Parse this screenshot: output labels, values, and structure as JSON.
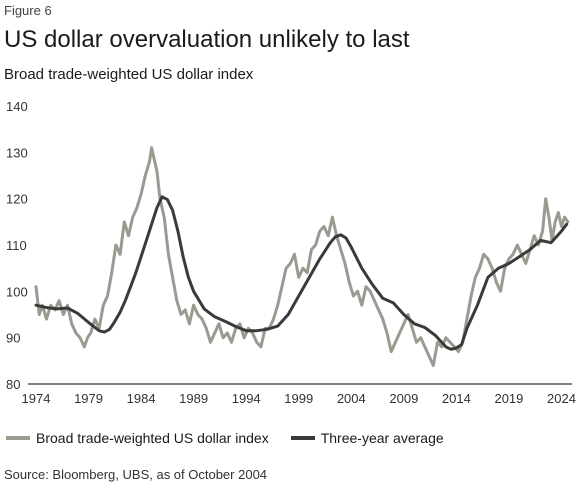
{
  "figure_label": "Figure 6",
  "title": "US dollar overvaluation unlikely to last",
  "subtitle": "Broad trade-weighted US dollar index",
  "source": "Source: Bloomberg, UBS, as of October 2004",
  "colors": {
    "index": "#9a9a90",
    "average": "#3a3a3a",
    "axis": "#333333"
  },
  "chart_data": {
    "type": "line",
    "title": "US dollar overvaluation unlikely to last",
    "subtitle": "Broad trade-weighted US dollar index",
    "xlabel": "",
    "ylabel": "",
    "xlim": [
      1974,
      2025
    ],
    "ylim": [
      80,
      140
    ],
    "x_ticks": [
      1974,
      1979,
      1984,
      1989,
      1994,
      1999,
      2004,
      2009,
      2014,
      2019,
      2024
    ],
    "y_ticks": [
      80,
      90,
      100,
      110,
      120,
      130,
      140
    ],
    "grid": false,
    "legend_position": "bottom",
    "series": [
      {
        "name": "Broad trade-weighted US dollar index",
        "color": "#9a9a90",
        "x": [
          1974.0,
          1974.3,
          1974.6,
          1975.0,
          1975.4,
          1975.8,
          1976.2,
          1976.6,
          1977.0,
          1977.4,
          1977.8,
          1978.2,
          1978.6,
          1978.9,
          1979.2,
          1979.6,
          1980.0,
          1980.4,
          1980.8,
          1981.2,
          1981.6,
          1982.0,
          1982.4,
          1982.8,
          1983.2,
          1983.6,
          1984.0,
          1984.4,
          1984.8,
          1985.0,
          1985.2,
          1985.5,
          1985.8,
          1986.2,
          1986.6,
          1987.0,
          1987.4,
          1987.8,
          1988.2,
          1988.6,
          1989.0,
          1989.4,
          1989.8,
          1990.2,
          1990.6,
          1991.0,
          1991.4,
          1991.8,
          1992.2,
          1992.6,
          1993.0,
          1993.4,
          1993.8,
          1994.2,
          1994.6,
          1995.0,
          1995.4,
          1995.8,
          1996.2,
          1996.6,
          1997.0,
          1997.4,
          1997.8,
          1998.2,
          1998.6,
          1999.0,
          1999.4,
          1999.8,
          2000.2,
          2000.6,
          2001.0,
          2001.4,
          2001.8,
          2002.2,
          2002.6,
          2003.0,
          2003.4,
          2003.8,
          2004.2,
          2004.6,
          2005.0,
          2005.4,
          2005.8,
          2006.2,
          2006.6,
          2007.0,
          2007.4,
          2007.8,
          2008.2,
          2008.6,
          2009.0,
          2009.4,
          2009.8,
          2010.2,
          2010.6,
          2011.0,
          2011.4,
          2011.8,
          2012.2,
          2012.6,
          2013.0,
          2013.4,
          2013.8,
          2014.2,
          2014.6,
          2015.0,
          2015.4,
          2015.8,
          2016.2,
          2016.6,
          2017.0,
          2017.4,
          2017.8,
          2018.2,
          2018.6,
          2019.0,
          2019.4,
          2019.8,
          2020.2,
          2020.6,
          2021.0,
          2021.4,
          2021.8,
          2022.2,
          2022.5,
          2022.8,
          2023.1,
          2023.4,
          2023.7,
          2024.0,
          2024.3,
          2024.6
        ],
        "y": [
          101,
          95,
          97,
          94,
          97,
          96,
          98,
          95,
          97,
          93,
          91,
          90,
          88,
          90,
          91,
          94,
          92,
          97,
          99,
          104,
          110,
          108,
          115,
          112,
          116,
          118,
          121,
          125,
          128,
          131,
          129,
          126,
          120,
          116,
          108,
          103,
          98,
          95,
          96,
          93,
          97,
          95,
          94,
          92,
          89,
          91,
          93,
          90,
          91,
          89,
          92,
          93,
          90,
          92,
          91,
          89,
          88,
          92,
          92,
          94,
          97,
          101,
          105,
          106,
          108,
          103,
          105,
          104,
          109,
          110,
          113,
          114,
          112,
          116,
          112,
          109,
          106,
          102,
          99,
          100,
          97,
          101,
          100,
          98,
          96,
          94,
          91,
          87,
          89,
          91,
          93,
          95,
          92,
          89,
          90,
          88,
          86,
          84,
          89,
          88,
          90,
          89,
          88,
          87,
          89,
          94,
          99,
          103,
          105,
          108,
          107,
          105,
          102,
          100,
          105,
          107,
          108,
          110,
          108,
          106,
          109,
          112,
          110,
          113,
          120,
          116,
          111,
          115,
          117,
          114,
          116,
          115
        ],
        "points_drawn": "line"
      },
      {
        "name": "Three-year average",
        "color": "#3a3a3a",
        "x": [
          1974.0,
          1975.0,
          1976.0,
          1977.0,
          1978.0,
          1979.0,
          1980.0,
          1980.5,
          1981.0,
          1981.5,
          1982.0,
          1982.5,
          1983.0,
          1983.5,
          1984.0,
          1984.5,
          1985.0,
          1985.5,
          1986.0,
          1986.5,
          1987.0,
          1987.5,
          1988.0,
          1988.5,
          1989.0,
          1990.0,
          1991.0,
          1992.0,
          1993.0,
          1994.0,
          1995.0,
          1996.0,
          1997.0,
          1998.0,
          1999.0,
          2000.0,
          2001.0,
          2002.0,
          2002.5,
          2003.0,
          2003.5,
          2004.0,
          2005.0,
          2006.0,
          2007.0,
          2008.0,
          2009.0,
          2010.0,
          2011.0,
          2012.0,
          2013.0,
          2013.5,
          2014.0,
          2014.5,
          2015.0,
          2016.0,
          2017.0,
          2018.0,
          2019.0,
          2020.0,
          2021.0,
          2022.0,
          2023.0,
          2024.0,
          2024.5
        ],
        "y": [
          97.0,
          96.5,
          96.2,
          96.4,
          95.2,
          93.3,
          91.5,
          91.2,
          91.8,
          93.5,
          95.5,
          98.0,
          101.0,
          104.0,
          107.5,
          111.0,
          114.5,
          118.0,
          120.4,
          119.8,
          117.5,
          113.0,
          107.5,
          103.0,
          100.0,
          96.2,
          94.5,
          93.5,
          92.4,
          91.5,
          91.5,
          91.8,
          92.5,
          95.0,
          99.0,
          103.0,
          107.0,
          110.5,
          111.8,
          112.2,
          111.5,
          109.5,
          105.0,
          101.5,
          98.5,
          97.5,
          95.0,
          93.0,
          92.2,
          90.5,
          88.0,
          87.5,
          87.8,
          88.5,
          92.0,
          97.0,
          103.0,
          105.0,
          106.0,
          107.5,
          109.0,
          111.0,
          110.5,
          113.0,
          114.5
        ]
      }
    ]
  }
}
